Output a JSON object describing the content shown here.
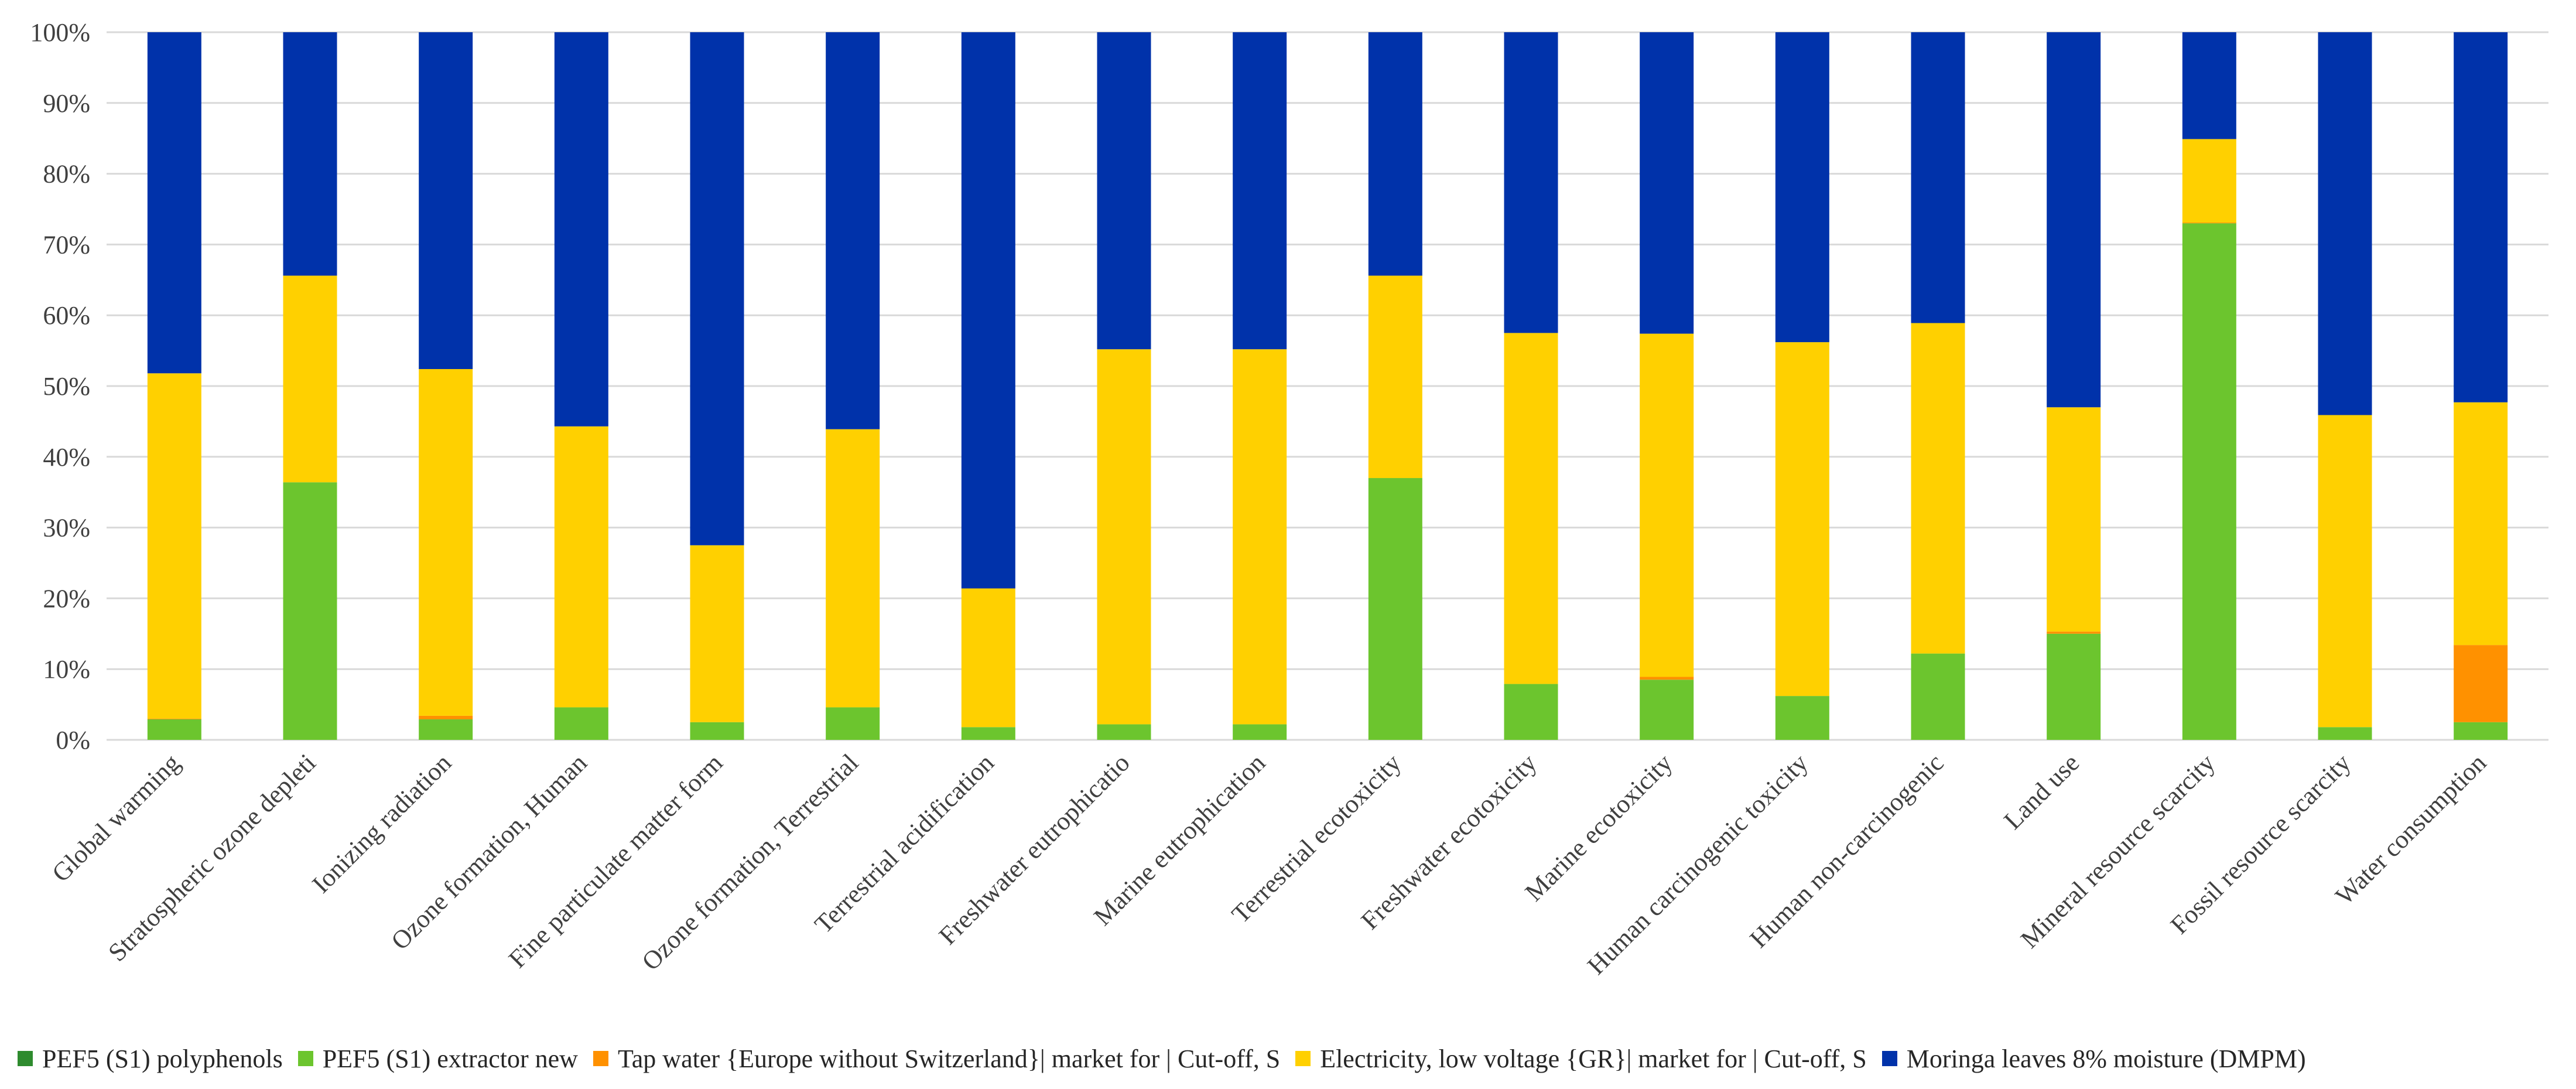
{
  "chart_data": {
    "type": "bar",
    "stacked": true,
    "percent": true,
    "title": "",
    "xlabel": "",
    "ylabel": "",
    "ylim": [
      0,
      100
    ],
    "y_ticks": [
      "0%",
      "10%",
      "20%",
      "30%",
      "40%",
      "50%",
      "60%",
      "70%",
      "80%",
      "90%",
      "100%"
    ],
    "grid": true,
    "legend_position": "bottom",
    "categories": [
      "Global warming",
      "Stratospheric ozone depleti",
      "Ionizing radiation",
      "Ozone formation, Human",
      "Fine particulate matter form",
      "Ozone formation, Terrestrial",
      "Terrestrial acidification",
      "Freshwater eutrophicatio",
      "Marine eutrophication",
      "Terrestrial ecotoxicity",
      "Freshwater ecotoxicity",
      "Marine ecotoxicity",
      "Human carcinogenic toxicity",
      "Human non-carcinogenic",
      "Land use",
      "Mineral resource scarcity",
      "Fossil resource scarcity",
      "Water consumption"
    ],
    "series": [
      {
        "name": "PEF5 (S1) polyphenols",
        "color": "#2e8b2e",
        "values": [
          0,
          0,
          0,
          0,
          0,
          0,
          0,
          0,
          0,
          0,
          0,
          0,
          0,
          0,
          0,
          0,
          0,
          0
        ]
      },
      {
        "name": "PEF5 (S1) extractor new",
        "color": "#6cc52e",
        "values": [
          2.9,
          36.4,
          2.9,
          4.6,
          2.5,
          4.6,
          1.8,
          2.2,
          2.2,
          37.0,
          7.9,
          8.5,
          6.2,
          12.2,
          15.0,
          73.0,
          1.8,
          2.5
        ]
      },
      {
        "name": "Tap water {Europe without Switzerland}| market for | Cut-off, S",
        "color": "#ff9100",
        "values": [
          0.1,
          0,
          0.5,
          0,
          0,
          0,
          0,
          0,
          0,
          0,
          0,
          0.4,
          0,
          0,
          0.3,
          0.1,
          0,
          10.9
        ]
      },
      {
        "name": "Electricity, low voltage {GR}| market for | Cut-off, S",
        "color": "#ffd000",
        "values": [
          48.8,
          29.2,
          49.0,
          39.7,
          25.0,
          39.3,
          19.6,
          53.0,
          53.0,
          28.6,
          49.6,
          48.5,
          50.0,
          46.7,
          31.7,
          11.8,
          44.1,
          34.3
        ]
      },
      {
        "name": "Moringa leaves 8% moisture (DMPM)",
        "color": "#0032aa",
        "values": [
          48.2,
          34.4,
          47.6,
          55.7,
          72.5,
          56.1,
          78.6,
          44.8,
          44.8,
          34.4,
          42.5,
          42.6,
          43.8,
          41.1,
          53.0,
          15.1,
          54.1,
          52.3
        ]
      }
    ]
  }
}
